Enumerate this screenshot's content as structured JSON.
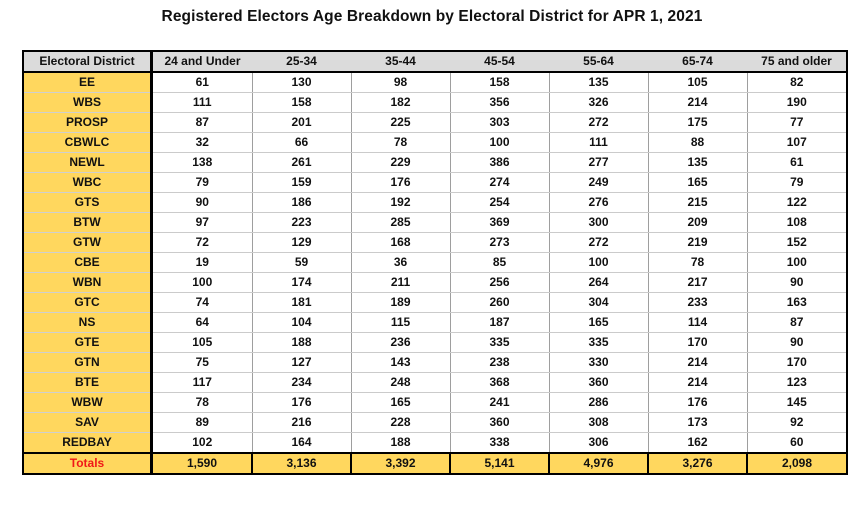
{
  "title": "Registered Electors Age Breakdown by Electoral District for APR 1, 2021",
  "table": {
    "district_header": "Electoral District",
    "age_headers": [
      "24 and Under",
      "25-34",
      "35-44",
      "45-54",
      "55-64",
      "65-74",
      "75 and older"
    ],
    "totals_label": "Totals",
    "totals_display": [
      "1,590",
      "3,136",
      "3,392",
      "5,141",
      "4,976",
      "3,276",
      "2,098"
    ]
  },
  "colors": {
    "district_column_gold": "#ffd75e",
    "header_gray": "#dbdbdb",
    "totals_label_red": "#f01818",
    "border_black": "#000000",
    "grid_gray": "#9e9e9e"
  },
  "chart_data": {
    "type": "table",
    "title": "Registered Electors Age Breakdown by Electoral District for APR 1, 2021",
    "columns": [
      "Electoral District",
      "24 and Under",
      "25-34",
      "35-44",
      "45-54",
      "55-64",
      "65-74",
      "75 and older"
    ],
    "rows": [
      [
        "EE",
        61,
        130,
        98,
        158,
        135,
        105,
        82
      ],
      [
        "WBS",
        111,
        158,
        182,
        356,
        326,
        214,
        190
      ],
      [
        "PROSP",
        87,
        201,
        225,
        303,
        272,
        175,
        77
      ],
      [
        "CBWLC",
        32,
        66,
        78,
        100,
        111,
        88,
        107
      ],
      [
        "NEWL",
        138,
        261,
        229,
        386,
        277,
        135,
        61
      ],
      [
        "WBC",
        79,
        159,
        176,
        274,
        249,
        165,
        79
      ],
      [
        "GTS",
        90,
        186,
        192,
        254,
        276,
        215,
        122
      ],
      [
        "BTW",
        97,
        223,
        285,
        369,
        300,
        209,
        108
      ],
      [
        "GTW",
        72,
        129,
        168,
        273,
        272,
        219,
        152
      ],
      [
        "CBE",
        19,
        59,
        36,
        85,
        100,
        78,
        100
      ],
      [
        "WBN",
        100,
        174,
        211,
        256,
        264,
        217,
        90
      ],
      [
        "GTC",
        74,
        181,
        189,
        260,
        304,
        233,
        163
      ],
      [
        "NS",
        64,
        104,
        115,
        187,
        165,
        114,
        87
      ],
      [
        "GTE",
        105,
        188,
        236,
        335,
        335,
        170,
        90
      ],
      [
        "GTN",
        75,
        127,
        143,
        238,
        330,
        214,
        170
      ],
      [
        "BTE",
        117,
        234,
        248,
        368,
        360,
        214,
        123
      ],
      [
        "WBW",
        78,
        176,
        165,
        241,
        286,
        176,
        145
      ],
      [
        "SAV",
        89,
        216,
        228,
        360,
        308,
        173,
        92
      ],
      [
        "REDBAY",
        102,
        164,
        188,
        338,
        306,
        162,
        60
      ]
    ],
    "totals": [
      "Totals",
      1590,
      3136,
      3392,
      5141,
      4976,
      3276,
      2098
    ]
  }
}
